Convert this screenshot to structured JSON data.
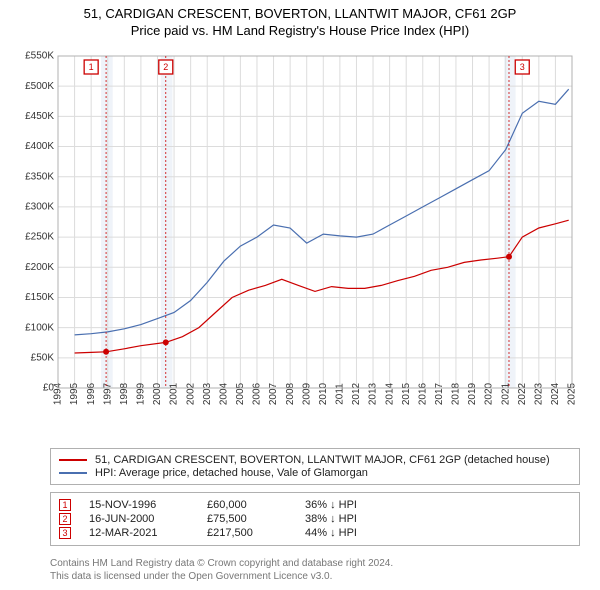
{
  "title": {
    "line1": "51, CARDIGAN CRESCENT, BOVERTON, LLANTWIT MAJOR, CF61 2GP",
    "line2": "Price paid vs. HM Land Registry's House Price Index (HPI)",
    "fontsize": 13,
    "color": "#000000"
  },
  "chart": {
    "type": "line",
    "background_color": "#ffffff",
    "grid_color": "#dcdcdc",
    "border_color": "#b0b0b0",
    "x": {
      "min": 1994,
      "max": 2025,
      "ticks": [
        1994,
        1995,
        1996,
        1997,
        1998,
        1999,
        2000,
        2001,
        2002,
        2003,
        2004,
        2005,
        2006,
        2007,
        2008,
        2009,
        2010,
        2011,
        2012,
        2013,
        2014,
        2015,
        2016,
        2017,
        2018,
        2019,
        2020,
        2021,
        2022,
        2023,
        2024,
        2025
      ],
      "tick_fontsize": 10,
      "tick_rotation": -90
    },
    "y": {
      "min": 0,
      "max": 550000,
      "ticks": [
        0,
        50000,
        100000,
        150000,
        200000,
        250000,
        300000,
        350000,
        400000,
        450000,
        500000,
        550000
      ],
      "tick_labels": [
        "£0",
        "£50K",
        "£100K",
        "£150K",
        "£200K",
        "£250K",
        "£300K",
        "£350K",
        "£400K",
        "£450K",
        "£500K",
        "£550K"
      ],
      "tick_fontsize": 10
    },
    "shaded_bands": [
      {
        "x_start": 1996.6,
        "x_end": 1997.3,
        "color": "#e8eef6"
      },
      {
        "x_start": 2000.2,
        "x_end": 2000.9,
        "color": "#e8eef6"
      },
      {
        "x_start": 2020.9,
        "x_end": 2021.6,
        "color": "#e8eef6"
      }
    ],
    "series": [
      {
        "name": "property_price",
        "label": "51, CARDIGAN CRESCENT, BOVERTON, LLANTWIT MAJOR, CF61 2GP (detached house)",
        "color": "#cc0000",
        "line_width": 1.2,
        "points": [
          [
            1995.0,
            58000
          ],
          [
            1996.0,
            59000
          ],
          [
            1996.9,
            60000
          ],
          [
            1998.0,
            65000
          ],
          [
            1999.0,
            70000
          ],
          [
            2000.5,
            75500
          ],
          [
            2001.5,
            85000
          ],
          [
            2002.5,
            100000
          ],
          [
            2003.5,
            125000
          ],
          [
            2004.5,
            150000
          ],
          [
            2005.5,
            162000
          ],
          [
            2006.5,
            170000
          ],
          [
            2007.5,
            180000
          ],
          [
            2008.5,
            170000
          ],
          [
            2009.5,
            160000
          ],
          [
            2010.5,
            168000
          ],
          [
            2011.5,
            165000
          ],
          [
            2012.5,
            165000
          ],
          [
            2013.5,
            170000
          ],
          [
            2014.5,
            178000
          ],
          [
            2015.5,
            185000
          ],
          [
            2016.5,
            195000
          ],
          [
            2017.5,
            200000
          ],
          [
            2018.5,
            208000
          ],
          [
            2019.5,
            212000
          ],
          [
            2020.5,
            215000
          ],
          [
            2021.2,
            217500
          ],
          [
            2022.0,
            250000
          ],
          [
            2023.0,
            265000
          ],
          [
            2024.0,
            272000
          ],
          [
            2024.8,
            278000
          ]
        ]
      },
      {
        "name": "hpi",
        "label": "HPI: Average price, detached house, Vale of Glamorgan",
        "color": "#4a6fb0",
        "line_width": 1.2,
        "points": [
          [
            1995.0,
            88000
          ],
          [
            1996.0,
            90000
          ],
          [
            1997.0,
            93000
          ],
          [
            1998.0,
            98000
          ],
          [
            1999.0,
            105000
          ],
          [
            2000.0,
            115000
          ],
          [
            2001.0,
            125000
          ],
          [
            2002.0,
            145000
          ],
          [
            2003.0,
            175000
          ],
          [
            2004.0,
            210000
          ],
          [
            2005.0,
            235000
          ],
          [
            2006.0,
            250000
          ],
          [
            2007.0,
            270000
          ],
          [
            2008.0,
            265000
          ],
          [
            2009.0,
            240000
          ],
          [
            2010.0,
            255000
          ],
          [
            2011.0,
            252000
          ],
          [
            2012.0,
            250000
          ],
          [
            2013.0,
            255000
          ],
          [
            2014.0,
            270000
          ],
          [
            2015.0,
            285000
          ],
          [
            2016.0,
            300000
          ],
          [
            2017.0,
            315000
          ],
          [
            2018.0,
            330000
          ],
          [
            2019.0,
            345000
          ],
          [
            2020.0,
            360000
          ],
          [
            2021.0,
            395000
          ],
          [
            2022.0,
            455000
          ],
          [
            2023.0,
            475000
          ],
          [
            2024.0,
            470000
          ],
          [
            2024.8,
            495000
          ]
        ]
      }
    ],
    "event_markers": [
      {
        "n": "1",
        "x": 1996.9,
        "y": 60000,
        "box_x": 1996.0
      },
      {
        "n": "2",
        "x": 2000.5,
        "y": 75500,
        "box_x": 2000.5
      },
      {
        "n": "3",
        "x": 2021.2,
        "y": 217500,
        "box_x": 2022.0
      }
    ]
  },
  "legend": {
    "border_color": "#b0b0b0",
    "fontsize": 11,
    "rows": [
      {
        "color": "#cc0000",
        "label": "51, CARDIGAN CRESCENT, BOVERTON, LLANTWIT MAJOR, CF61 2GP (detached house)"
      },
      {
        "color": "#4a6fb0",
        "label": "HPI: Average price, detached house, Vale of Glamorgan"
      }
    ]
  },
  "events_table": {
    "border_color": "#b0b0b0",
    "fontsize": 11,
    "rows": [
      {
        "n": "1",
        "date": "15-NOV-1996",
        "price": "£60,000",
        "diff": "36% ↓ HPI"
      },
      {
        "n": "2",
        "date": "16-JUN-2000",
        "price": "£75,500",
        "diff": "38% ↓ HPI"
      },
      {
        "n": "3",
        "date": "12-MAR-2021",
        "price": "£217,500",
        "diff": "44% ↓ HPI"
      }
    ]
  },
  "footer": {
    "line1": "Contains HM Land Registry data © Crown copyright and database right 2024.",
    "line2": "This data is licensed under the Open Government Licence v3.0.",
    "color": "#777777",
    "fontsize": 10
  }
}
